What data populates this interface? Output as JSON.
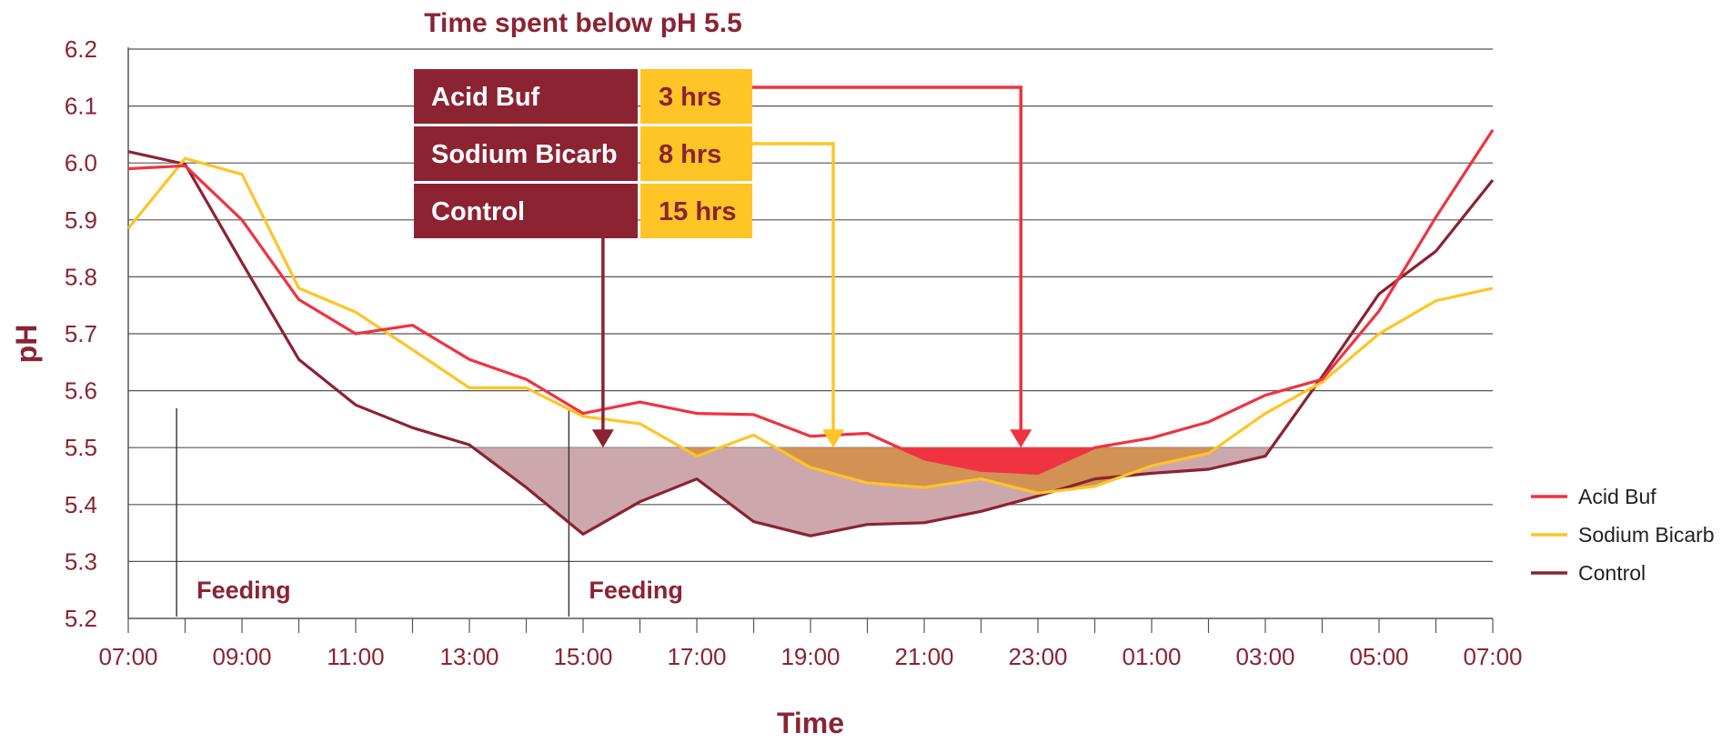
{
  "colors": {
    "maroon": "#8B2332",
    "red": "#EF3340",
    "yellow": "#FFC425",
    "grid": "#555555",
    "shade_control": "#CCA7AC",
    "shade_sodium": "#D19253",
    "shade_acid": "#EF3340"
  },
  "chart_data": {
    "type": "line",
    "title": "Time spent below pH 5.5",
    "xlabel": "Time",
    "ylabel": "pH",
    "ylim": [
      5.2,
      6.2
    ],
    "yticks": [
      "5.2",
      "5.3",
      "5.4",
      "5.5",
      "5.6",
      "5.7",
      "5.8",
      "5.9",
      "6.0",
      "6.1",
      "6.2"
    ],
    "x_tick_labels": [
      "07:00",
      "09:00",
      "11:00",
      "13:00",
      "15:00",
      "17:00",
      "19:00",
      "21:00",
      "23:00",
      "01:00",
      "03:00",
      "05:00",
      "07:00"
    ],
    "threshold": 5.5,
    "grid": true,
    "legend_position": "right",
    "series": [
      {
        "name": "Acid Buf",
        "color": "#EF3340",
        "hours": [
          0,
          1,
          2,
          3,
          4,
          5,
          6,
          7,
          8,
          9,
          10,
          11,
          12,
          13,
          14,
          15,
          16,
          17,
          18,
          19,
          20,
          21,
          22,
          23,
          24
        ],
        "values": [
          5.99,
          5.995,
          5.9,
          5.76,
          5.7,
          5.715,
          5.655,
          5.62,
          5.56,
          5.58,
          5.56,
          5.558,
          5.52,
          5.525,
          5.48,
          5.46,
          5.455,
          5.5,
          5.517,
          5.545,
          5.592,
          5.62,
          5.74,
          5.905,
          6.058
        ]
      },
      {
        "name": "Sodium Bicarb",
        "color": "#FFC425",
        "hours": [
          0,
          1,
          2,
          3,
          4,
          5,
          6,
          7,
          8,
          9,
          10,
          11,
          12,
          13,
          14,
          15,
          16,
          17,
          18,
          19,
          20,
          21,
          22,
          23,
          24
        ],
        "values": [
          5.885,
          6.008,
          5.98,
          5.78,
          5.738,
          5.672,
          5.605,
          5.605,
          5.555,
          5.542,
          5.485,
          5.522,
          5.465,
          5.438,
          5.43,
          5.445,
          5.42,
          5.432,
          5.468,
          5.49,
          5.56,
          5.615,
          5.7,
          5.758,
          5.78
        ]
      },
      {
        "name": "Control",
        "color": "#8B2332",
        "hours": [
          0,
          1,
          2,
          3,
          4,
          5,
          6,
          7,
          8,
          9,
          10,
          11,
          12,
          13,
          14,
          15,
          16,
          17,
          18,
          19,
          20,
          21,
          22,
          23,
          24
        ],
        "values": [
          6.02,
          5.998,
          5.825,
          5.655,
          5.575,
          5.535,
          5.505,
          5.43,
          5.348,
          5.405,
          5.445,
          5.37,
          5.345,
          5.365,
          5.368,
          5.388,
          5.415,
          5.445,
          5.455,
          5.462,
          5.485,
          5.625,
          5.77,
          5.845,
          5.97
        ]
      }
    ],
    "feeding_markers": [
      {
        "label": "Feeding",
        "hour": 0.85
      },
      {
        "label": "Feeding",
        "hour": 7.75
      }
    ],
    "time_below_table": [
      {
        "name": "Acid Buf",
        "value": "3 hrs",
        "target_hour": 15.7
      },
      {
        "name": "Sodium Bicarb",
        "value": "8 hrs",
        "target_hour": 12.4
      },
      {
        "name": "Control",
        "value": "15 hrs",
        "target_hour": 8.35
      }
    ]
  }
}
